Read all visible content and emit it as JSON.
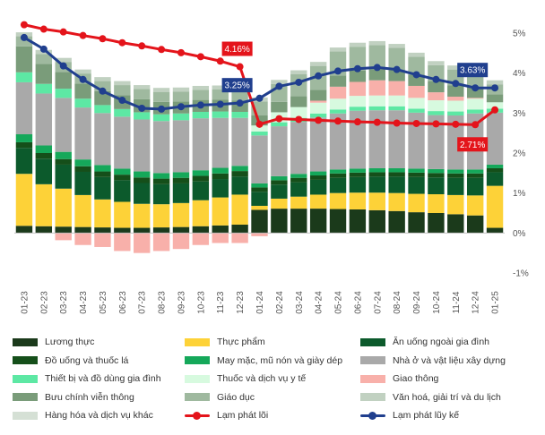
{
  "chart_data": {
    "type": "bar",
    "stacked": true,
    "categories": [
      "01-23",
      "02-23",
      "03-23",
      "04-23",
      "05-23",
      "06-23",
      "07-23",
      "08-23",
      "09-23",
      "10-23",
      "11-23",
      "12-23",
      "01-24",
      "02-24",
      "03-24",
      "04-24",
      "05-24",
      "06-24",
      "07-24",
      "08-24",
      "09-24",
      "10-24",
      "11-24",
      "12-24",
      "01-25"
    ],
    "ylim": [
      -1,
      5
    ],
    "y_ticks": [
      -1,
      0,
      1,
      2,
      3,
      4,
      5
    ],
    "y_tick_labels": [
      "-1%",
      "0%",
      "1%",
      "2%",
      "3%",
      "4%",
      "5%"
    ],
    "y_axis_position": "right",
    "grid": false,
    "series": [
      {
        "name": "Lương thực",
        "color": "#1b3a1b",
        "values": [
          0.18,
          0.17,
          0.16,
          0.15,
          0.14,
          0.13,
          0.13,
          0.14,
          0.15,
          0.17,
          0.19,
          0.21,
          0.58,
          0.61,
          0.61,
          0.61,
          0.6,
          0.59,
          0.57,
          0.55,
          0.52,
          0.5,
          0.47,
          0.44,
          0.13
        ]
      },
      {
        "name": "Thực phẩm",
        "color": "#fdd238",
        "values": [
          1.3,
          1.05,
          0.95,
          0.8,
          0.7,
          0.65,
          0.6,
          0.58,
          0.6,
          0.65,
          0.7,
          0.75,
          0.1,
          0.25,
          0.3,
          0.35,
          0.4,
          0.42,
          0.44,
          0.45,
          0.46,
          0.47,
          0.48,
          0.5,
          1.05
        ]
      },
      {
        "name": "Ăn uống ngoài gia đình",
        "color": "#0c5a2c",
        "values": [
          0.65,
          0.64,
          0.6,
          0.58,
          0.56,
          0.54,
          0.52,
          0.5,
          0.49,
          0.47,
          0.46,
          0.45,
          0.35,
          0.35,
          0.36,
          0.37,
          0.38,
          0.39,
          0.4,
          0.41,
          0.42,
          0.42,
          0.43,
          0.44,
          0.34
        ]
      },
      {
        "name": "Đồ uống và thuốc lá",
        "color": "#154f1a",
        "values": [
          0.14,
          0.14,
          0.14,
          0.14,
          0.14,
          0.14,
          0.14,
          0.14,
          0.14,
          0.14,
          0.14,
          0.14,
          0.11,
          0.11,
          0.11,
          0.11,
          0.11,
          0.11,
          0.11,
          0.11,
          0.11,
          0.11,
          0.11,
          0.11,
          0.1
        ]
      },
      {
        "name": "May mặc, mũ nón và giày dép",
        "color": "#15a85a",
        "values": [
          0.2,
          0.19,
          0.18,
          0.17,
          0.16,
          0.15,
          0.15,
          0.14,
          0.14,
          0.14,
          0.14,
          0.13,
          0.1,
          0.1,
          0.1,
          0.1,
          0.1,
          0.1,
          0.1,
          0.1,
          0.1,
          0.1,
          0.1,
          0.1,
          0.09
        ]
      },
      {
        "name": "Nhà ở và vật liệu xây dựng",
        "color": "#a9a9a9",
        "values": [
          1.3,
          1.3,
          1.35,
          1.3,
          1.3,
          1.3,
          1.3,
          1.3,
          1.3,
          1.3,
          1.25,
          1.2,
          1.2,
          1.25,
          1.3,
          1.35,
          1.4,
          1.45,
          1.45,
          1.45,
          1.4,
          1.35,
          1.35,
          1.4,
          1.3
        ]
      },
      {
        "name": "Thiết bị và đồ dùng gia đình",
        "color": "#5de8a4",
        "values": [
          0.25,
          0.24,
          0.23,
          0.22,
          0.2,
          0.19,
          0.18,
          0.17,
          0.17,
          0.16,
          0.16,
          0.15,
          0.1,
          0.1,
          0.1,
          0.1,
          0.1,
          0.1,
          0.1,
          0.1,
          0.1,
          0.1,
          0.1,
          0.1,
          0.1
        ]
      },
      {
        "name": "Thuốc và dịch vụ y tế",
        "color": "#d7fadf",
        "values": [
          0.0,
          0.0,
          0.0,
          0.0,
          0.0,
          0.0,
          0.0,
          0.0,
          0.0,
          0.0,
          0.0,
          0.0,
          0.15,
          0.25,
          0.27,
          0.27,
          0.27,
          0.27,
          0.27,
          0.27,
          0.27,
          0.27,
          0.27,
          0.27,
          0.16
        ]
      },
      {
        "name": "Giao thông",
        "color": "#f8b0aa",
        "values": [
          0.0,
          0.0,
          -0.18,
          -0.3,
          -0.35,
          -0.45,
          -0.5,
          -0.45,
          -0.4,
          -0.3,
          -0.25,
          -0.25,
          -0.08,
          0.0,
          0.0,
          0.05,
          0.3,
          0.35,
          0.38,
          0.36,
          0.3,
          0.2,
          0.1,
          0.02,
          0.0
        ]
      },
      {
        "name": "Bưu chính viễn thông",
        "color": "#7a9c7a",
        "values": [
          0.65,
          0.5,
          0.42,
          0.38,
          0.35,
          0.35,
          0.33,
          0.31,
          0.3,
          0.3,
          0.3,
          0.28,
          0.25,
          0.26,
          0.27,
          0.27,
          0.28,
          0.28,
          0.28,
          0.28,
          0.28,
          0.28,
          0.28,
          0.28,
          0.2
        ]
      },
      {
        "name": "Giáo dục",
        "color": "#9fb99f",
        "values": [
          0.25,
          0.25,
          0.25,
          0.25,
          0.25,
          0.25,
          0.25,
          0.25,
          0.25,
          0.25,
          0.25,
          0.25,
          0.35,
          0.45,
          0.55,
          0.6,
          0.6,
          0.6,
          0.6,
          0.55,
          0.45,
          0.4,
          0.4,
          0.35,
          0.25
        ]
      },
      {
        "name": "Văn hoá, giải trí và du lịch",
        "color": "#c1d1c1",
        "values": [
          0.1,
          0.1,
          0.1,
          0.1,
          0.1,
          0.1,
          0.1,
          0.1,
          0.1,
          0.1,
          0.1,
          0.1,
          0.1,
          0.1,
          0.1,
          0.1,
          0.1,
          0.1,
          0.1,
          0.1,
          0.1,
          0.1,
          0.1,
          0.1,
          0.1
        ]
      },
      {
        "name": "Hàng hóa và dịch vụ khác",
        "color": "#d5e0d5",
        "values": [
          0.0,
          0.0,
          0.0,
          0.0,
          0.0,
          0.0,
          0.0,
          0.0,
          0.0,
          0.0,
          0.0,
          0.0,
          0.0,
          0.0,
          0.0,
          0.0,
          0.0,
          0.0,
          0.0,
          0.0,
          0.0,
          0.0,
          0.0,
          0.0,
          0.0
        ]
      }
    ],
    "lines": [
      {
        "name": "Lạm phát lõi",
        "color": "#e4141b",
        "values": [
          5.21,
          5.1,
          5.03,
          4.94,
          4.86,
          4.76,
          4.68,
          4.59,
          4.51,
          4.41,
          4.3,
          4.16,
          2.72,
          2.86,
          2.84,
          2.82,
          2.8,
          2.78,
          2.77,
          2.75,
          2.74,
          2.73,
          2.72,
          2.71,
          3.08
        ]
      },
      {
        "name": "Lạm phát lũy kế",
        "color": "#203f8e",
        "values": [
          4.89,
          4.6,
          4.18,
          3.84,
          3.55,
          3.32,
          3.12,
          3.1,
          3.16,
          3.2,
          3.22,
          3.25,
          3.37,
          3.67,
          3.77,
          3.93,
          4.05,
          4.11,
          4.14,
          4.09,
          3.96,
          3.84,
          3.74,
          3.63,
          3.63
        ]
      }
    ],
    "annotations": [
      {
        "text": "4.16%",
        "series": "Lạm phát lõi",
        "category": "12-23",
        "color": "#e4141b"
      },
      {
        "text": "3.25%",
        "series": "Lạm phát lũy kế",
        "category": "12-23",
        "color": "#203f8e"
      },
      {
        "text": "3.63%",
        "series": "Lạm phát lũy kế",
        "category": "12-24",
        "color": "#203f8e"
      },
      {
        "text": "2.71%",
        "series": "Lạm phát lõi",
        "category": "12-24",
        "color": "#e4141b"
      }
    ]
  }
}
